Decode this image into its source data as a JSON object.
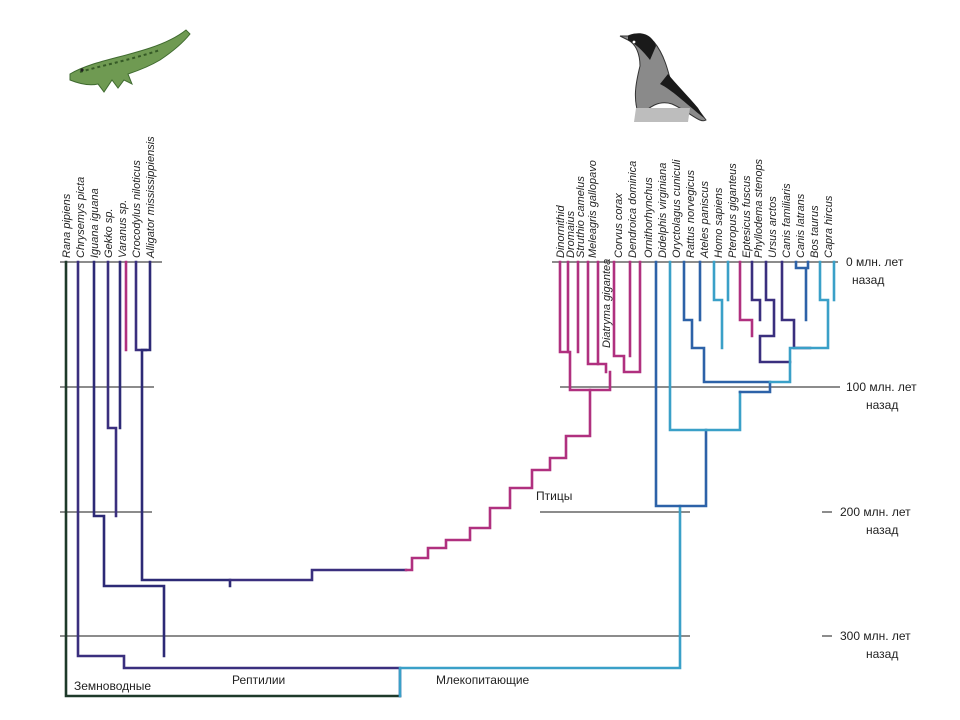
{
  "taxa": {
    "reptiles": [
      "Rana pipiens",
      "Chrysemys picta",
      "Iguana iguana",
      "Gekko sp.",
      "Varanus sp.",
      "Crocodylus niloticus",
      "Alligator mississippiensis"
    ],
    "birds": [
      "Dinornithid",
      "Dromaius",
      "Struthio camelus",
      "Meleagris gallopavo",
      "Diatryma gigantea",
      "Corvus corax",
      "Dendroica dominica"
    ],
    "mammals": [
      "Ornithorhynchus",
      "Didelphis virginiana",
      "Oryctolagus cuniculi",
      "Rattus norvegicus",
      "Ateles paniscus",
      "Homo sapiens",
      "Pteropus giganteus",
      "Eptesicus fuscus",
      "Phyllodema stenops",
      "Ursus arctos",
      "Canis familiaris",
      "Canis latrans",
      "Bos taurus",
      "Capra hircus"
    ]
  },
  "time_scale": [
    {
      "line1": "0 млн. лет",
      "line2": "назад"
    },
    {
      "line1": "100 млн. лет",
      "line2": "назад"
    },
    {
      "line1": "200 млн. лет",
      "line2": "назад"
    },
    {
      "line1": "300 млн. лет",
      "line2": "назад"
    }
  ],
  "groups": {
    "amphibians": "Земноводные",
    "reptiles": "Рептилии",
    "mammals": "Млекопитающие",
    "birds": "Птицы"
  },
  "colors": {
    "amphibian": "#1e3a2a",
    "reptile": "#3a2f7e",
    "reptile_deep": "#2d2a76",
    "bird": "#b0307f",
    "mammal_blue": "#2d62a8",
    "mammal_teal": "#3aa0c8",
    "grid": "#8c8c8c"
  },
  "icons": [
    "crocodile-icon",
    "crow-icon"
  ]
}
